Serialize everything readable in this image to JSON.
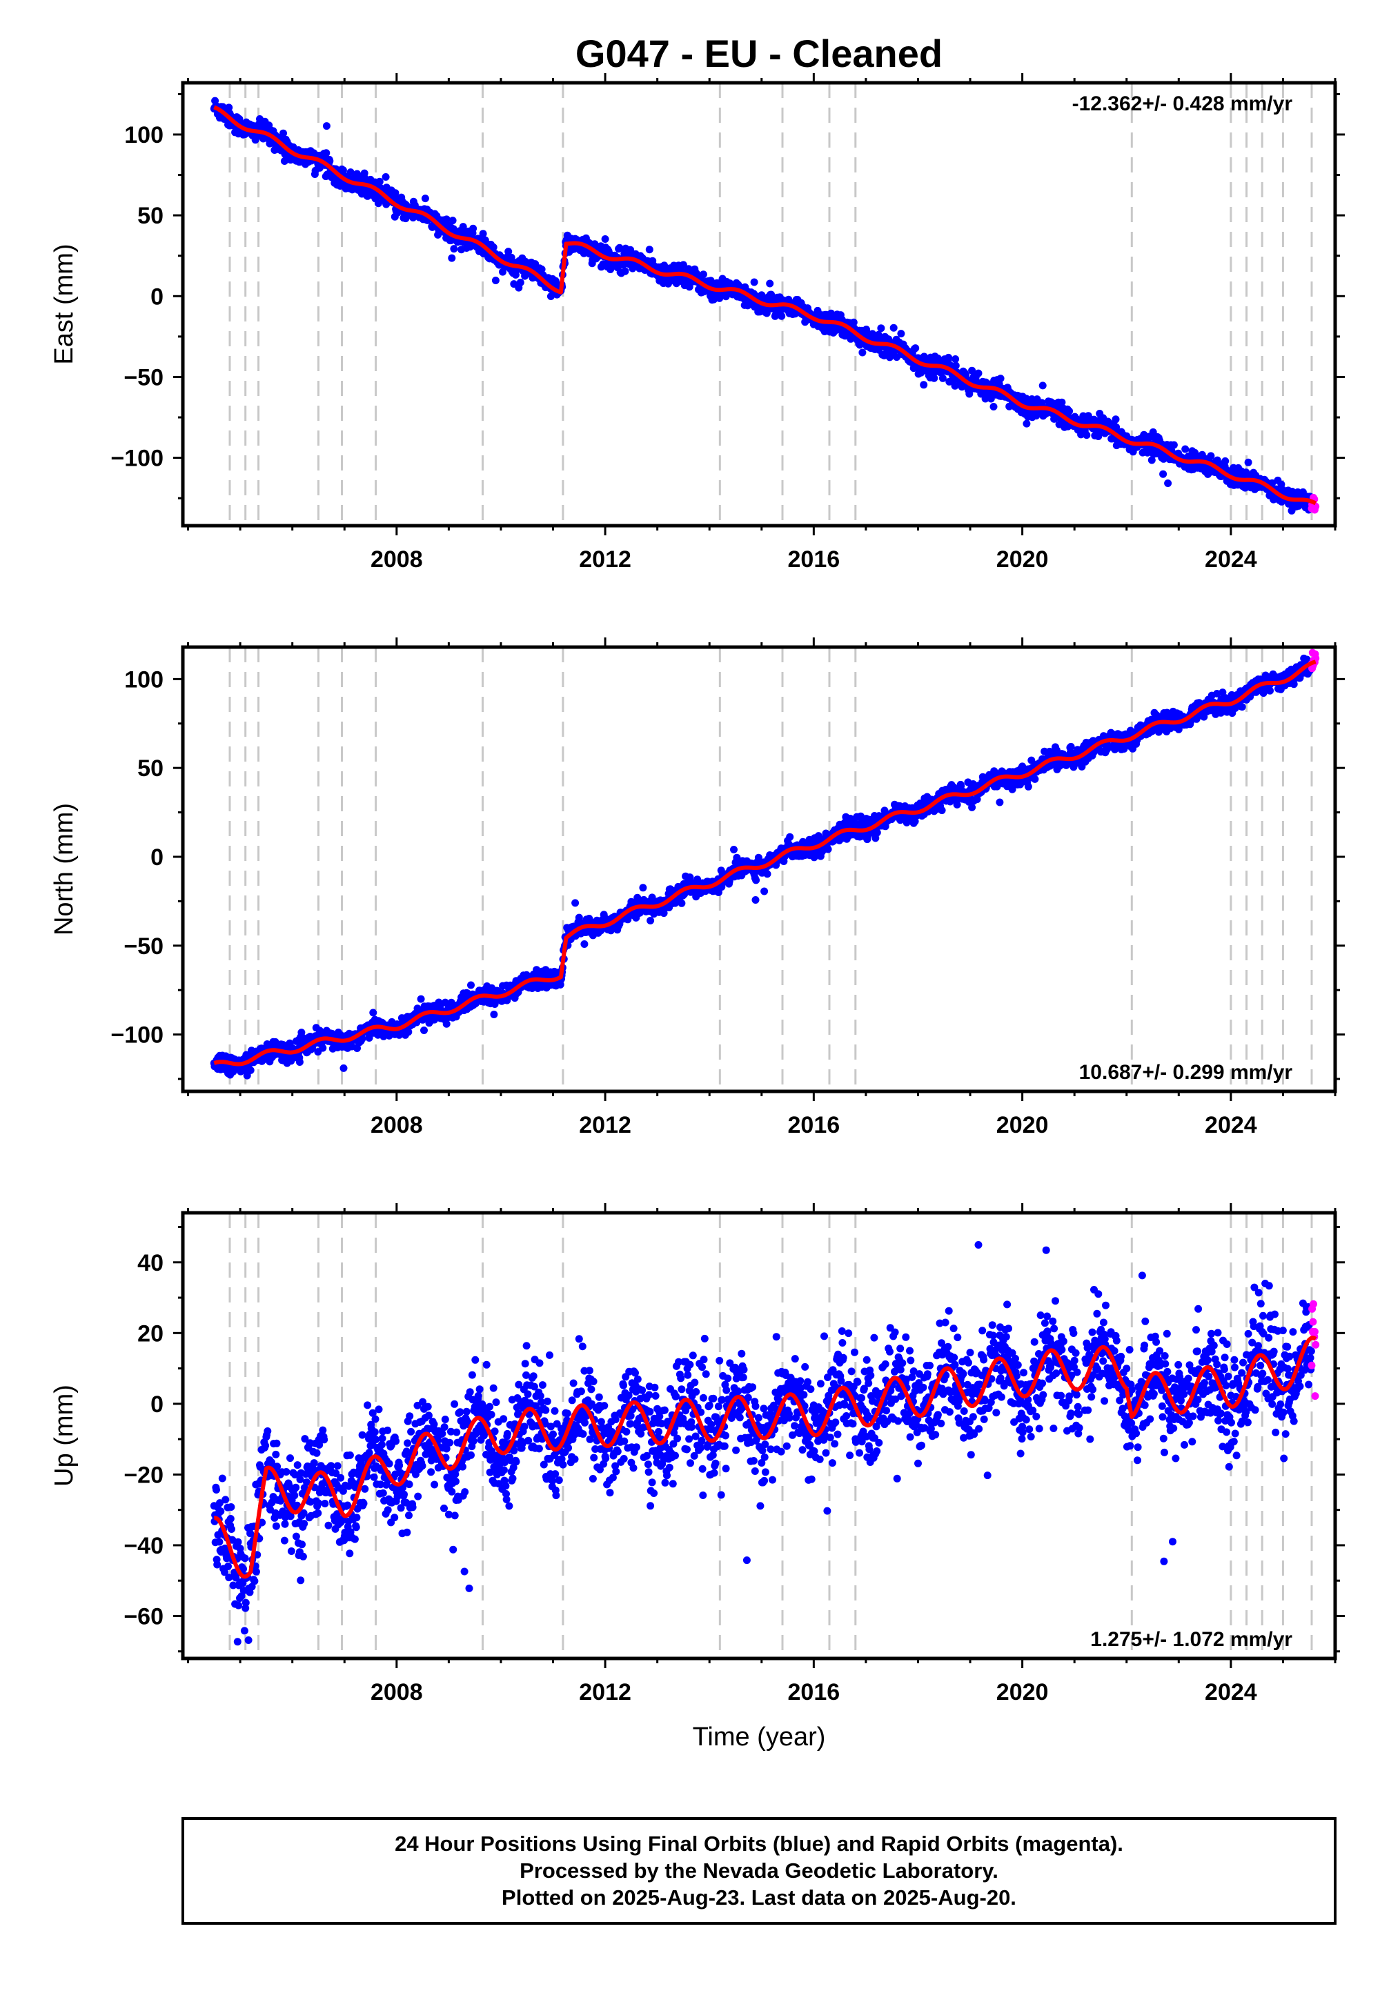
{
  "title": "G047  - EU - Cleaned",
  "footer": {
    "line1": "24 Hour Positions Using Final Orbits (blue) and Rapid Orbits (magenta).",
    "line2": "Processed by the Nevada Geodetic Laboratory.",
    "line3": "Plotted on 2025-Aug-23. Last data on 2025-Aug-20."
  },
  "colors": {
    "final": "#0000ff",
    "rapid": "#ff00ff",
    "model": "#ff0000",
    "breaks": "#c8c8c8"
  },
  "chart_data": [
    {
      "type": "scatter",
      "component": "East",
      "ylabel": "East (mm)",
      "xlabel": "",
      "rate": "-12.362+/- 0.428 mm/yr",
      "xlim": [
        2003.9,
        2026.0
      ],
      "ylim": [
        -142,
        132
      ],
      "xticks": [
        2008,
        2012,
        2016,
        2020,
        2024
      ],
      "yticks": [
        -100,
        -50,
        0,
        50,
        100
      ],
      "rate_position": "top-right",
      "grid": false,
      "data_start": 2004.5,
      "data_end": 2025.63,
      "rapid_start": 2025.55,
      "trend_mm_per_yr": -12.362,
      "offsets": [
        {
          "year": 2011.19,
          "value": 30
        }
      ],
      "key_points": [
        {
          "x": 2004.5,
          "y": 115
        },
        {
          "x": 2008.0,
          "y": 58
        },
        {
          "x": 2011.15,
          "y": 4
        },
        {
          "x": 2011.25,
          "y": 33
        },
        {
          "x": 2016.0,
          "y": -12
        },
        {
          "x": 2020.0,
          "y": -66
        },
        {
          "x": 2024.0,
          "y": -110
        },
        {
          "x": 2025.63,
          "y": -130
        }
      ],
      "annual_amplitude_mm": 2,
      "scatter_sigma_mm": 3
    },
    {
      "type": "scatter",
      "component": "North",
      "ylabel": "North (mm)",
      "xlabel": "",
      "rate": "10.687+/- 0.299 mm/yr",
      "xlim": [
        2003.9,
        2026.0
      ],
      "ylim": [
        -132,
        118
      ],
      "xticks": [
        2008,
        2012,
        2016,
        2020,
        2024
      ],
      "yticks": [
        -100,
        -50,
        0,
        50,
        100
      ],
      "rate_position": "bottom-right",
      "grid": false,
      "data_start": 2004.5,
      "data_end": 2025.63,
      "rapid_start": 2025.55,
      "trend_mm_per_yr": 10.687,
      "offsets": [
        {
          "year": 2011.19,
          "value": 18
        }
      ],
      "key_points": [
        {
          "x": 2004.5,
          "y": -118
        },
        {
          "x": 2008.0,
          "y": -95
        },
        {
          "x": 2011.15,
          "y": -66
        },
        {
          "x": 2011.25,
          "y": -45
        },
        {
          "x": 2016.0,
          "y": 7
        },
        {
          "x": 2020.0,
          "y": 47
        },
        {
          "x": 2024.0,
          "y": 88
        },
        {
          "x": 2025.63,
          "y": 108
        }
      ],
      "annual_amplitude_mm": 2,
      "scatter_sigma_mm": 2.5
    },
    {
      "type": "scatter",
      "component": "Up",
      "ylabel": "Up (mm)",
      "xlabel": "Time (year)",
      "rate": "1.275+/- 1.072 mm/yr",
      "xlim": [
        2003.9,
        2026.0
      ],
      "ylim": [
        -72,
        54
      ],
      "xticks": [
        2008,
        2012,
        2016,
        2020,
        2024
      ],
      "yticks": [
        -60,
        -40,
        -20,
        0,
        20,
        40
      ],
      "rate_position": "bottom-right",
      "grid": false,
      "data_start": 2004.5,
      "data_end": 2025.63,
      "rapid_start": 2025.55,
      "trend_mm_per_yr": 1.275,
      "key_points": [
        {
          "x": 2004.5,
          "y": -38
        },
        {
          "x": 2005.2,
          "y": -44
        },
        {
          "x": 2005.5,
          "y": -24
        },
        {
          "x": 2007.0,
          "y": -26
        },
        {
          "x": 2008.0,
          "y": -17
        },
        {
          "x": 2010.0,
          "y": -8
        },
        {
          "x": 2012.0,
          "y": -6
        },
        {
          "x": 2016.0,
          "y": -3
        },
        {
          "x": 2020.0,
          "y": 8
        },
        {
          "x": 2021.0,
          "y": 10
        },
        {
          "x": 2022.0,
          "y": 10
        },
        {
          "x": 2022.1,
          "y": 2
        },
        {
          "x": 2024.0,
          "y": 5
        },
        {
          "x": 2025.63,
          "y": 13
        }
      ],
      "annual_amplitude_mm": 6,
      "scatter_sigma_mm": 7
    }
  ],
  "equipment_changes": [
    2004.8,
    2005.1,
    2005.35,
    2006.5,
    2006.95,
    2007.6,
    2009.65,
    2011.19,
    2014.2,
    2015.4,
    2016.3,
    2016.8,
    2022.1,
    2024.0,
    2024.3,
    2024.6,
    2025.0,
    2025.55
  ]
}
